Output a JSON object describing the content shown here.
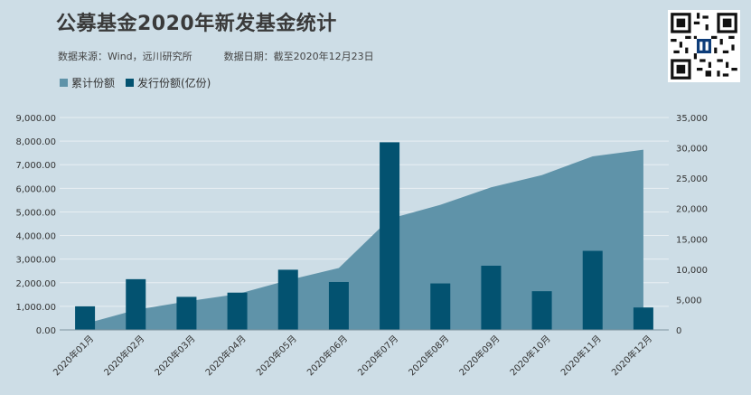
{
  "header": {
    "title": "公募基金2020年新发基金统计",
    "source": "数据来源：Wind，远川研究所          数据日期：截至2020年12月23日"
  },
  "colors": {
    "accent_red": "#ff0000",
    "area": "#5f93a9",
    "bar": "#035270",
    "background": "#cddde6"
  },
  "chart_data": {
    "type": "bar",
    "categories": [
      "2020年01月",
      "2020年02月",
      "2020年03月",
      "2020年04月",
      "2020年05月",
      "2020年06月",
      "2020年07月",
      "2020年08月",
      "2020年09月",
      "2020年10月",
      "2020年11月",
      "2020年12月"
    ],
    "series": [
      {
        "name": "累计份额",
        "kind": "area",
        "axis": "right",
        "values": [
          1000,
          3300,
          4700,
          5900,
          8200,
          10200,
          18300,
          20600,
          23500,
          25500,
          28600,
          29700
        ]
      },
      {
        "name": "发行份额(亿份)",
        "kind": "bar",
        "axis": "left",
        "values": [
          1000,
          2150,
          1400,
          1580,
          2550,
          2030,
          7950,
          1970,
          2720,
          1640,
          3350,
          950
        ]
      }
    ],
    "left_axis": {
      "min": 0,
      "max": 9000,
      "step": 1000,
      "tick_labels": [
        "0.00",
        "1,000.00",
        "2,000.00",
        "3,000.00",
        "4,000.00",
        "5,000.00",
        "6,000.00",
        "7,000.00",
        "8,000.00",
        "9,000.00"
      ]
    },
    "right_axis": {
      "min": 0,
      "max": 35000,
      "step": 5000,
      "tick_labels": [
        "0",
        "5,000",
        "10,000",
        "15,000",
        "20,000",
        "25,000",
        "30,000",
        "35,000"
      ]
    },
    "legend_position": "top-left",
    "grid": true
  }
}
